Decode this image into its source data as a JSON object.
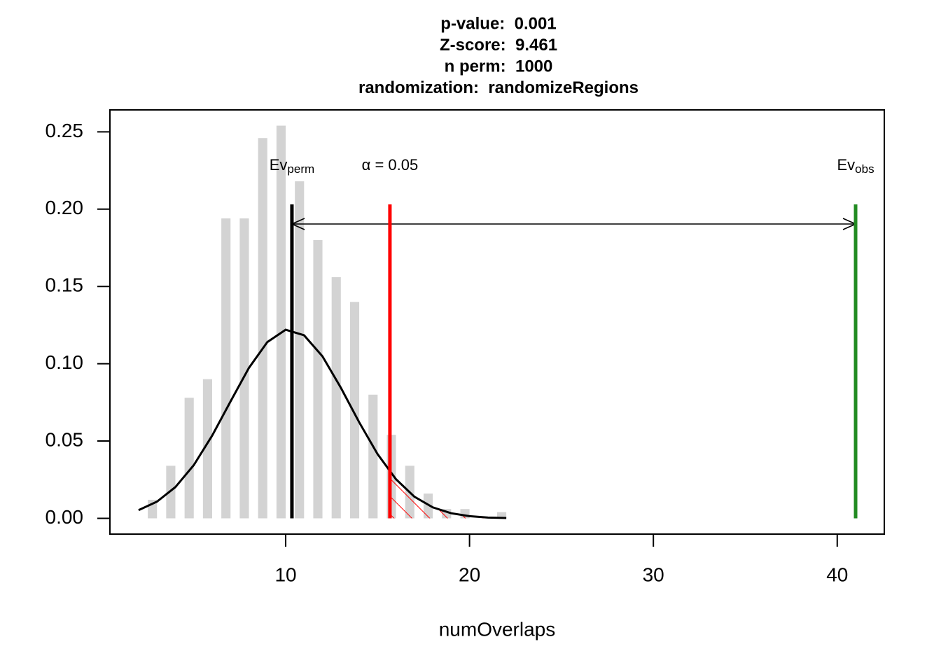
{
  "chart_data": {
    "type": "bar",
    "title": [
      "p-value:  0.001",
      "Z-score:  9.461",
      "n perm:  1000",
      "randomization:  randomizeRegions"
    ],
    "x_label": "numOverlaps",
    "x": [
      2.75,
      3.75,
      4.75,
      5.75,
      6.75,
      7.75,
      8.75,
      9.75,
      10.75,
      11.75,
      12.75,
      13.75,
      14.75,
      15.75,
      16.75,
      17.75,
      18.75,
      19.75,
      20.75,
      21.75
    ],
    "values": [
      0.012,
      0.034,
      0.078,
      0.09,
      0.194,
      0.194,
      0.246,
      0.254,
      0.218,
      0.18,
      0.156,
      0.14,
      0.08,
      0.054,
      0.034,
      0.016,
      0.006,
      0.006,
      0,
      0.004
    ],
    "color": "#d3d3d3",
    "density": {
      "x": [
        2,
        3,
        4,
        5,
        6,
        7,
        8,
        9,
        10,
        11,
        12,
        13,
        14,
        15,
        16,
        17,
        18,
        19,
        20,
        21,
        22
      ],
      "values": [
        0.0053,
        0.0108,
        0.0202,
        0.0344,
        0.0535,
        0.0756,
        0.0973,
        0.114,
        0.122,
        0.1184,
        0.1048,
        0.0845,
        0.0621,
        0.0415,
        0.0253,
        0.014,
        0.0071,
        0.0033,
        0.0014,
        0.0005,
        0.0002
      ],
      "color": "#000000"
    },
    "markers": [
      {
        "value": 10.34,
        "color": "#000000",
        "label": "Ev",
        "label_sub": "perm"
      },
      {
        "value": 15.67,
        "color": "#ff0000",
        "label": "α = 0.05"
      },
      {
        "value": 41,
        "color": "#228b22",
        "label": "Ev",
        "label_sub": "obs"
      }
    ],
    "xlim": [
      0.44,
      42.56
    ],
    "ylim": [
      -0.0102,
      0.2642
    ],
    "xticks": [
      10,
      20,
      30,
      40
    ],
    "yticks": [
      {
        "value": 0,
        "label": "0.00"
      },
      0.05,
      {
        "value": 0.1,
        "label": "0.10"
      },
      0.15,
      {
        "value": 0.2,
        "label": "0.20"
      },
      0.25
    ]
  }
}
